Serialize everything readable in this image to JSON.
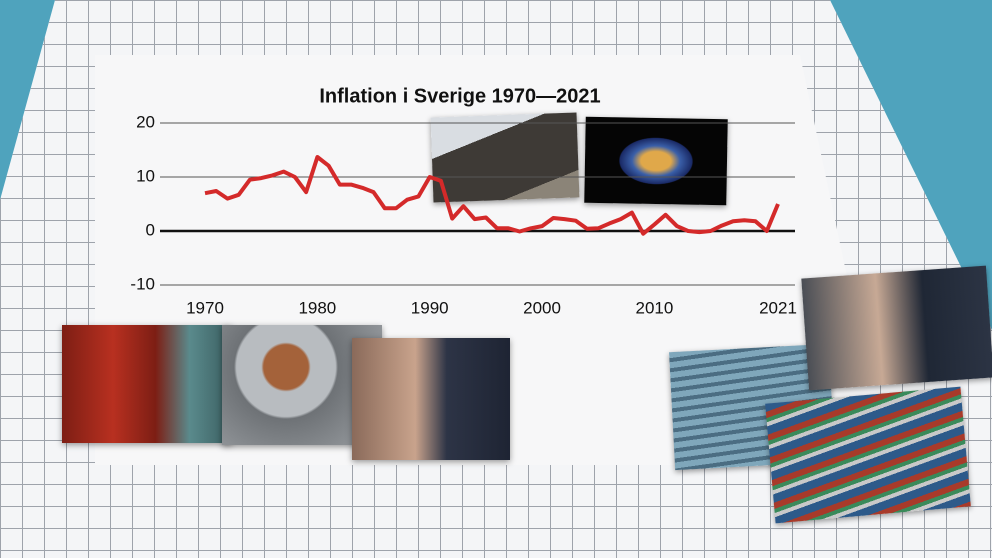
{
  "chart_data": {
    "type": "line",
    "title": "Inflation i Sverige 1970—2021",
    "x": [
      1970,
      1971,
      1972,
      1973,
      1974,
      1975,
      1976,
      1977,
      1978,
      1979,
      1980,
      1981,
      1982,
      1983,
      1984,
      1985,
      1986,
      1987,
      1988,
      1989,
      1990,
      1991,
      1992,
      1993,
      1994,
      1995,
      1996,
      1997,
      1998,
      1999,
      2000,
      2001,
      2002,
      2003,
      2004,
      2005,
      2006,
      2007,
      2008,
      2009,
      2010,
      2011,
      2012,
      2013,
      2014,
      2015,
      2016,
      2017,
      2018,
      2019,
      2020,
      2021
    ],
    "values": [
      7,
      7.4,
      6,
      6.7,
      9.5,
      9.8,
      10.3,
      11,
      10,
      7.2,
      13.7,
      12.1,
      8.6,
      8.6,
      8,
      7.2,
      4.2,
      4.2,
      5.8,
      6.4,
      10,
      9.3,
      2.3,
      4.6,
      2.2,
      2.5,
      0.5,
      0.5,
      -0.1,
      0.5,
      0.9,
      2.4,
      2.2,
      1.9,
      0.4,
      0.5,
      1.4,
      2.2,
      3.4,
      -0.5,
      1.2,
      3,
      0.9,
      0,
      -0.2,
      0,
      1,
      1.8,
      2,
      1.8,
      0,
      5
    ],
    "color": "#d42a2a",
    "xlim": [
      1970,
      2021
    ],
    "xticks": [
      1970,
      1980,
      1990,
      2000,
      2010,
      2021
    ],
    "ylim": [
      -10,
      20
    ],
    "yticks": [
      20,
      10,
      0,
      -10
    ],
    "grid": true
  }
}
